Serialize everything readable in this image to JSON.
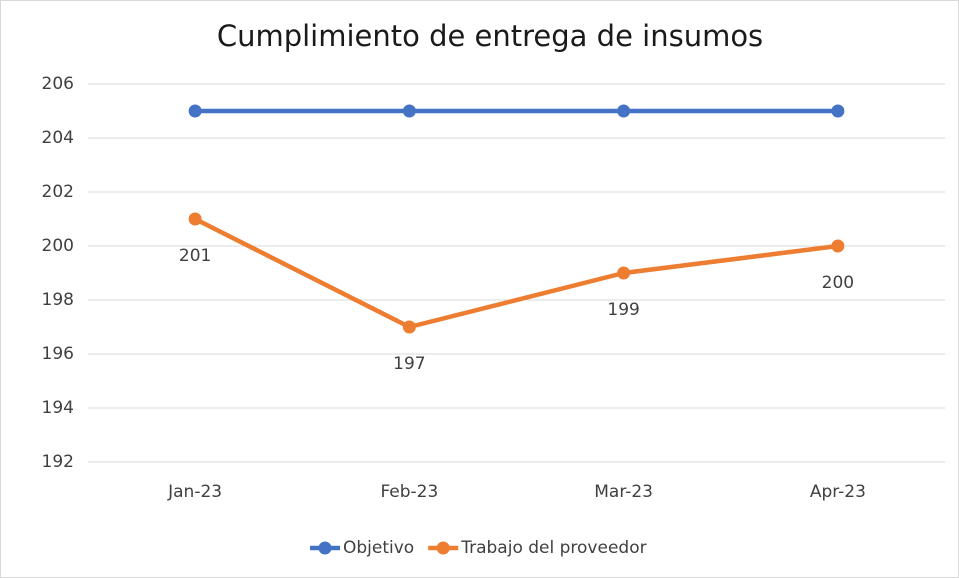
{
  "chart_data": {
    "type": "line",
    "title": "Cumplimiento de entrega de insumos",
    "categories": [
      "Jan-23",
      "Feb-23",
      "Mar-23",
      "Apr-23"
    ],
    "series": [
      {
        "name": "Objetivo",
        "color": "#4472c4",
        "values": [
          205,
          205,
          205,
          205
        ],
        "data_labels": false
      },
      {
        "name": "Trabajo del proveedor",
        "color": "#ed7d31",
        "values": [
          201,
          197,
          199,
          200
        ],
        "data_labels": true
      }
    ],
    "ylim": [
      192,
      206
    ],
    "yticks": [
      192,
      194,
      196,
      198,
      200,
      202,
      204,
      206
    ],
    "grid": true,
    "legend": "bottom"
  }
}
